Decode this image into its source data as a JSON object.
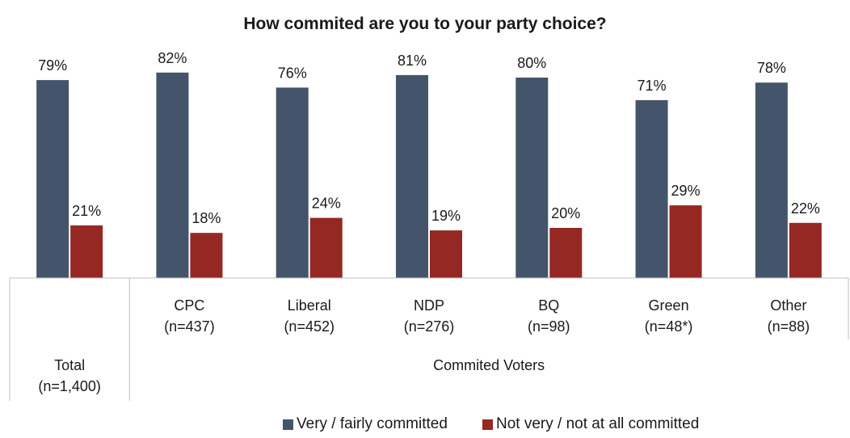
{
  "chart_data": {
    "type": "bar",
    "title": "How commited are you to your party choice?",
    "categories": [
      {
        "name": "Total",
        "n": "(n=1,400)"
      },
      {
        "name": "CPC",
        "n": "(n=437)"
      },
      {
        "name": "Liberal",
        "n": "(n=452)"
      },
      {
        "name": "NDP",
        "n": "(n=276)"
      },
      {
        "name": "BQ",
        "n": "(n=98)"
      },
      {
        "name": "Green",
        "n": "(n=48*)"
      },
      {
        "name": "Other",
        "n": "(n=88)"
      }
    ],
    "group_label": "Commited Voters",
    "series": [
      {
        "name": "Very / fairly committed",
        "color": "#44546a",
        "values": [
          79,
          82,
          76,
          81,
          80,
          71,
          78
        ],
        "labels": [
          "79%",
          "82%",
          "76%",
          "81%",
          "80%",
          "71%",
          "78%"
        ]
      },
      {
        "name": "Not very / not at all committed",
        "color": "#952823",
        "values": [
          21,
          18,
          24,
          19,
          20,
          29,
          22
        ],
        "labels": [
          "21%",
          "18%",
          "24%",
          "19%",
          "20%",
          "29%",
          "22%"
        ]
      }
    ],
    "ylim": [
      0,
      100
    ],
    "grid": false,
    "legend_position": "bottom"
  }
}
